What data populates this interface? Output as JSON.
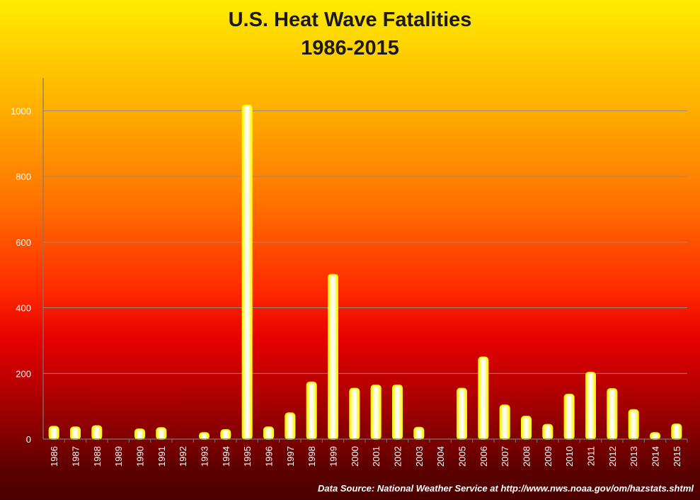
{
  "chart_data": {
    "type": "bar",
    "title": "U.S. Heat Wave Fatalities",
    "subtitle": "1986-2015",
    "xlabel": "",
    "ylabel": "",
    "ylim": [
      0,
      1100
    ],
    "yticks": [
      0,
      200,
      400,
      600,
      800,
      1000
    ],
    "grid": true,
    "categories": [
      "1986",
      "1987",
      "1988",
      "1989",
      "1990",
      "1991",
      "1992",
      "1993",
      "1994",
      "1995",
      "1996",
      "1997",
      "1998",
      "1999",
      "2000",
      "2001",
      "2002",
      "2003",
      "2004",
      "2005",
      "2006",
      "2007",
      "2008",
      "2009",
      "2010",
      "2011",
      "2012",
      "2013",
      "2014",
      "2015"
    ],
    "values": [
      38,
      36,
      40,
      0,
      30,
      34,
      0,
      19,
      28,
      1017,
      36,
      79,
      173,
      501,
      154,
      164,
      164,
      35,
      0,
      154,
      249,
      103,
      69,
      44,
      136,
      203,
      153,
      89,
      19,
      45
    ],
    "colors": {
      "bar_fill": "#ffff00",
      "bar_core": "#ffffe8",
      "axis": "#7a7a7a",
      "grid": "#8c8c8c",
      "tick_text": "#ffffff"
    },
    "source": "Data Source: National Weather Service at http://www.nws.noaa.gov/om/hazstats.shtml"
  }
}
